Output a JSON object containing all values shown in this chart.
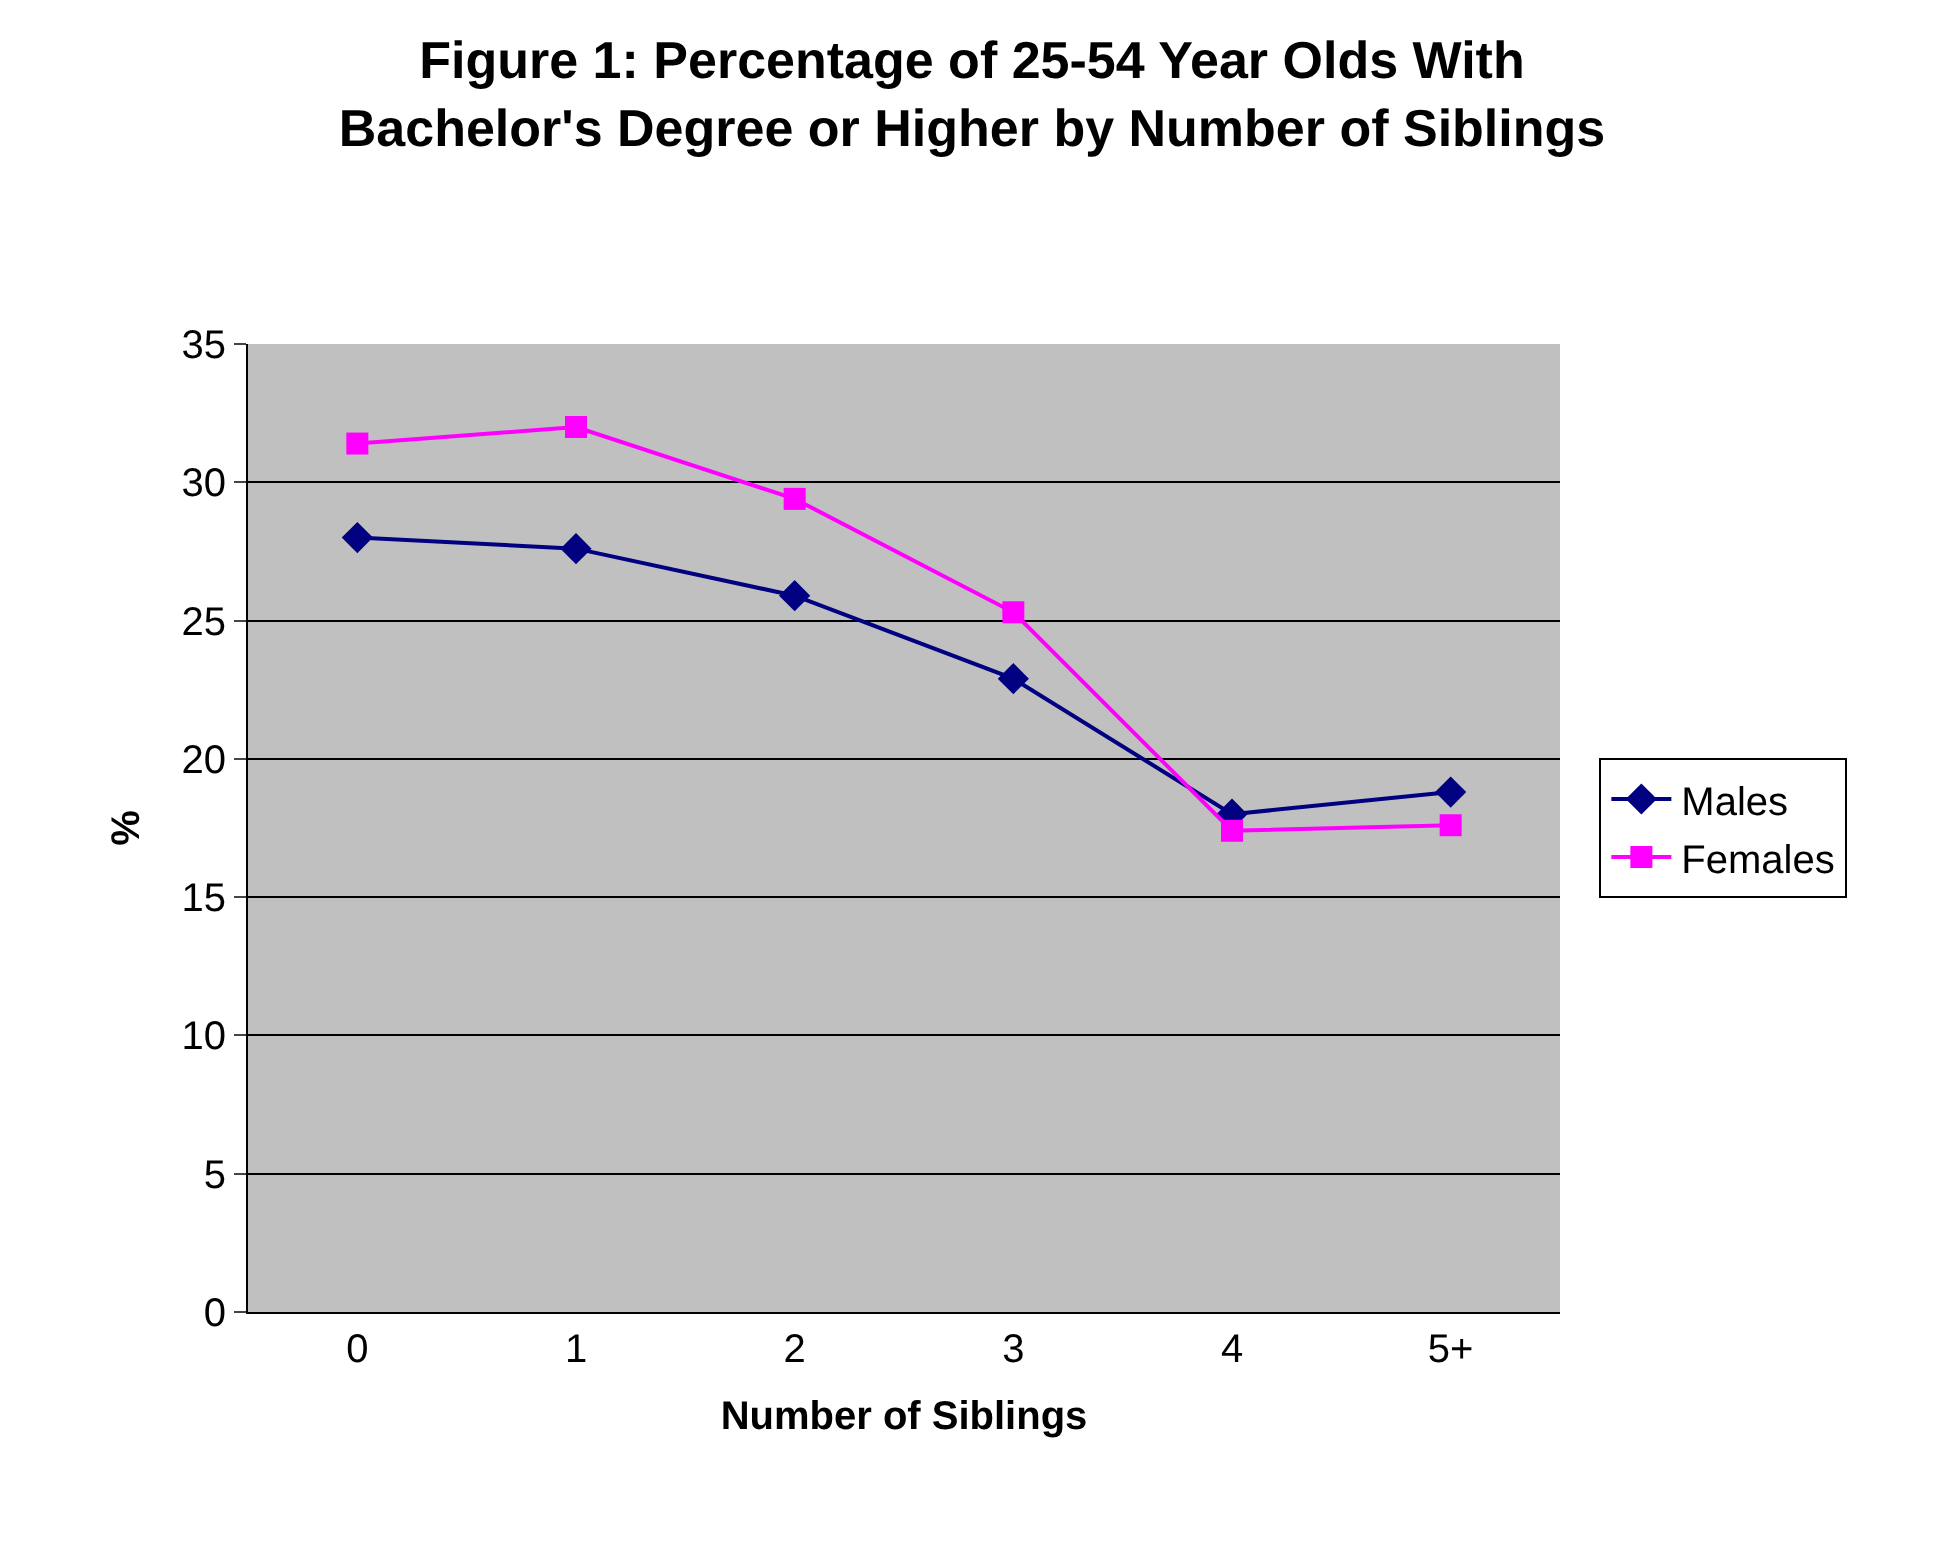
{
  "chart_data": {
    "type": "line",
    "title": "Figure 1: Percentage of 25-54 Year Olds With Bachelor's Degree or Higher by Number of Siblings",
    "xlabel": "Number of Siblings",
    "ylabel": "%",
    "categories": [
      "0",
      "1",
      "2",
      "3",
      "4",
      "5+"
    ],
    "series": [
      {
        "name": "Males",
        "color": "#000080",
        "marker": "diamond",
        "values": [
          28.0,
          27.6,
          25.9,
          22.9,
          18.0,
          18.8
        ]
      },
      {
        "name": "Females",
        "color": "#ff00ff",
        "marker": "square",
        "values": [
          31.4,
          32.0,
          29.4,
          25.3,
          17.4,
          17.6
        ]
      }
    ],
    "ylim": [
      0,
      35
    ],
    "yticks": [
      0,
      5,
      10,
      15,
      20,
      25,
      30,
      35
    ],
    "grid": "y",
    "legend": "right",
    "line_style": "solid"
  }
}
